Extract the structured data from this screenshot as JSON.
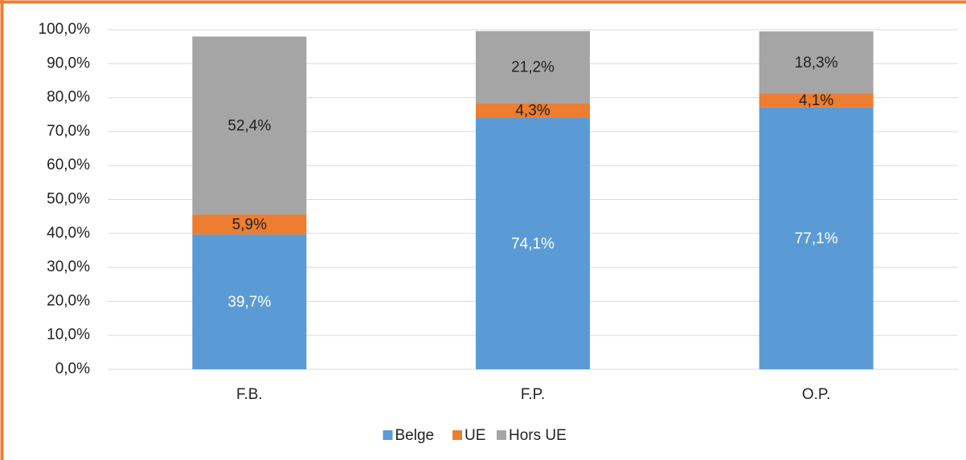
{
  "chart_data": {
    "type": "stacked_bar",
    "categories": [
      "F.B.",
      "F.P.",
      "O.P."
    ],
    "series": [
      {
        "name": "Belge",
        "color": "#5b9bd5",
        "values": [
          39.7,
          74.1,
          77.1
        ],
        "value_labels": [
          "39,7%",
          "74,1%",
          "77,1%"
        ]
      },
      {
        "name": "UE",
        "color": "#ed7d31",
        "values": [
          5.9,
          4.3,
          4.1
        ],
        "value_labels": [
          "5,9%",
          "4,3%",
          "4,1%"
        ]
      },
      {
        "name": "Hors UE",
        "color": "#a5a5a5",
        "values": [
          52.4,
          21.2,
          18.3
        ],
        "value_labels": [
          "52,4%",
          "21,2%",
          "18,3%"
        ]
      }
    ],
    "ylim": [
      0,
      100
    ],
    "yticks": [
      {
        "value": 0,
        "label": "0,0%"
      },
      {
        "value": 10,
        "label": "10,0%"
      },
      {
        "value": 20,
        "label": "20,0%"
      },
      {
        "value": 30,
        "label": "30,0%"
      },
      {
        "value": 40,
        "label": "40,0%"
      },
      {
        "value": 50,
        "label": "50,0%"
      },
      {
        "value": 60,
        "label": "60,0%"
      },
      {
        "value": 70,
        "label": "70,0%"
      },
      {
        "value": 80,
        "label": "80,0%"
      },
      {
        "value": 90,
        "label": "90,0%"
      },
      {
        "value": 100,
        "label": "100,0%"
      }
    ],
    "grid": true,
    "legend": "bottom"
  }
}
